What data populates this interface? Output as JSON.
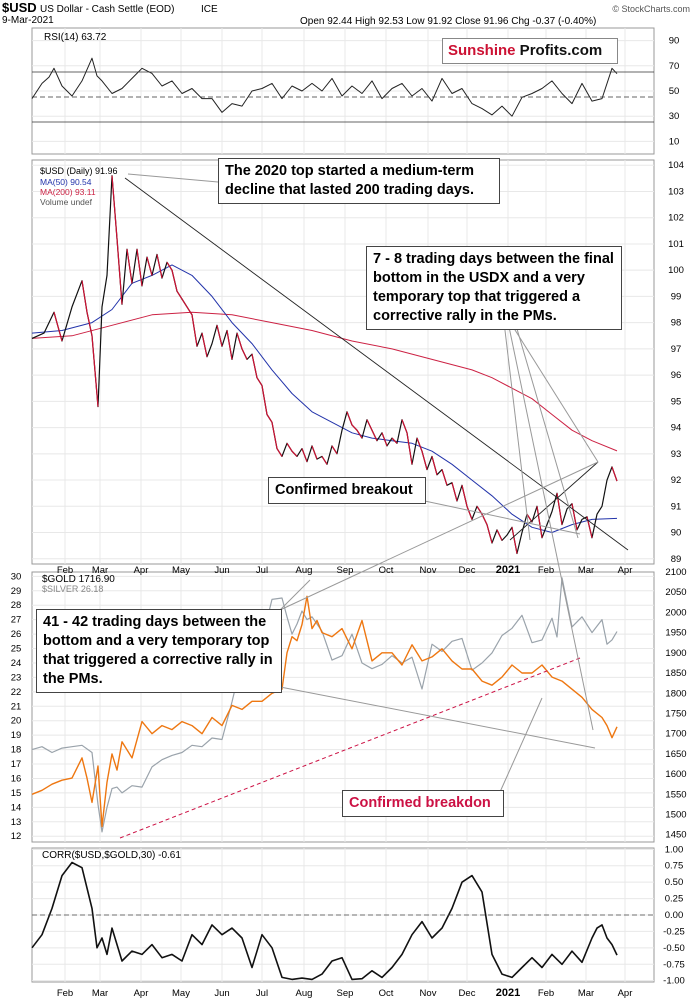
{
  "header": {
    "symbol": "$USD",
    "name": "US Dollar - Cash Settle (EOD)",
    "exchange": "ICE",
    "date": "9-Mar-2021",
    "watermark": "© StockCharts.com",
    "quote": "Open 92.44  High 92.53  Low 91.92  Close 91.96  Chg -0.37 (-0.40%)"
  },
  "logo": {
    "part1": "Sunshine",
    "part2": " Profits.com"
  },
  "colors": {
    "usd": "#000000",
    "ma50": "#2233aa",
    "ma200": "#cc2244",
    "gold": "#ee7711",
    "silver": "#9aa3ab",
    "breakdown": "#cc1144",
    "grid": "#e8e8e8"
  },
  "x_axis": {
    "months": [
      "Feb",
      "Mar",
      "Apr",
      "May",
      "Jun",
      "Jul",
      "Aug",
      "Sep",
      "Oct",
      "Nov",
      "Dec",
      "2021",
      "Feb",
      "Mar",
      "Apr"
    ]
  },
  "chart_data": [
    {
      "type": "line",
      "panel": "rsi",
      "legend": "RSI(14) 63.72",
      "y_ticks": [
        10,
        30,
        50,
        70,
        90
      ],
      "ylim": [
        0,
        100
      ],
      "x": [
        0,
        10,
        17,
        22,
        30,
        40,
        50,
        60,
        65,
        70,
        80,
        90,
        100,
        110,
        120,
        130,
        140,
        150,
        160,
        170,
        180,
        190,
        200,
        210,
        220,
        230,
        240,
        250,
        260,
        270,
        280,
        290,
        300,
        310,
        320,
        330,
        340,
        350,
        360,
        370,
        380,
        390,
        400,
        410,
        420,
        430,
        440,
        450,
        460,
        470,
        480,
        490,
        500,
        510,
        520,
        530,
        540,
        550,
        560,
        570,
        580,
        585
      ],
      "values": [
        44,
        56,
        61,
        68,
        54,
        46,
        58,
        76,
        62,
        58,
        48,
        52,
        60,
        68,
        64,
        54,
        58,
        48,
        52,
        44,
        44,
        33,
        40,
        38,
        50,
        52,
        56,
        44,
        54,
        50,
        56,
        50,
        60,
        46,
        54,
        48,
        58,
        44,
        52,
        56,
        46,
        52,
        42,
        60,
        48,
        52,
        40,
        36,
        31,
        38,
        30,
        45,
        48,
        52,
        58,
        48,
        40,
        56,
        42,
        44,
        68,
        63.72
      ]
    },
    {
      "type": "line",
      "panel": "usd",
      "legend": [
        "$USD (Daily) 91.96",
        "MA(50) 90.54",
        "MA(200) 93.11",
        "Volume undef"
      ],
      "y_ticks": [
        89,
        90,
        91,
        92,
        93,
        94,
        95,
        96,
        97,
        98,
        99,
        100,
        101,
        102,
        103,
        104
      ],
      "ylim": [
        88.8,
        104.2
      ],
      "series": [
        {
          "name": "$USD",
          "x": [
            0,
            12,
            22,
            30,
            40,
            50,
            55,
            60,
            66,
            70,
            75,
            80,
            85,
            90,
            95,
            100,
            105,
            110,
            115,
            120,
            125,
            130,
            135,
            140,
            145,
            150,
            160,
            165,
            170,
            175,
            180,
            185,
            190,
            195,
            200,
            205,
            210,
            215,
            220,
            225,
            230,
            235,
            240,
            245,
            250,
            255,
            260,
            265,
            270,
            275,
            280,
            285,
            290,
            295,
            300,
            305,
            310,
            315,
            320,
            325,
            330,
            335,
            340,
            345,
            350,
            355,
            360,
            365,
            370,
            375,
            380,
            385,
            390,
            395,
            400,
            405,
            410,
            415,
            420,
            425,
            430,
            435,
            440,
            445,
            450,
            455,
            460,
            465,
            470,
            475,
            480,
            485,
            490,
            495,
            500,
            505,
            510,
            515,
            520,
            525,
            530,
            535,
            540,
            545,
            550,
            555,
            560,
            565,
            570,
            575,
            580,
            585
          ],
          "values": [
            97.4,
            97.6,
            98.4,
            97.3,
            98.6,
            99.6,
            98.4,
            97.5,
            94.8,
            98.6,
            99.8,
            103.6,
            101.2,
            98.7,
            100.8,
            99.5,
            100.8,
            99.4,
            100.5,
            99.8,
            100.6,
            99.7,
            100.3,
            100.0,
            99.2,
            98.9,
            98.3,
            97.1,
            97.6,
            96.7,
            97.2,
            97.9,
            97.1,
            97.7,
            96.6,
            97.6,
            97.0,
            96.6,
            96.8,
            95.9,
            95.6,
            94.5,
            94.2,
            93.2,
            92.9,
            93.4,
            93.1,
            92.9,
            93.2,
            92.7,
            93.3,
            92.8,
            92.9,
            92.6,
            93.3,
            93.0,
            93.9,
            94.6,
            94.1,
            93.9,
            93.6,
            94.3,
            93.9,
            93.5,
            93.8,
            93.3,
            93.6,
            93.4,
            94.3,
            93.8,
            92.6,
            93.6,
            93.1,
            92.4,
            92.9,
            92.2,
            92.4,
            91.8,
            91.9,
            91.2,
            91.8,
            91.0,
            90.5,
            91.0,
            90.7,
            90.3,
            89.6,
            90.1,
            89.7,
            89.9,
            90.2,
            89.2,
            90.0,
            90.7,
            90.4,
            91.0,
            89.8,
            90.3,
            90.8,
            91.5,
            90.3,
            90.9,
            91.1,
            90.1,
            90.5,
            90.6,
            89.8,
            90.7,
            91.0,
            92.0,
            92.5,
            91.96
          ]
        },
        {
          "name": "MA(50)",
          "x": [
            0,
            30,
            60,
            80,
            100,
            120,
            140,
            160,
            180,
            200,
            220,
            240,
            260,
            280,
            300,
            320,
            340,
            360,
            380,
            400,
            420,
            440,
            460,
            480,
            500,
            520,
            540,
            560,
            585
          ],
          "values": [
            97.6,
            97.7,
            98.0,
            98.5,
            99.5,
            99.8,
            100.2,
            99.8,
            99.0,
            98.0,
            97.2,
            96.2,
            95.3,
            94.6,
            94.2,
            93.8,
            93.6,
            93.5,
            93.4,
            93.1,
            92.6,
            92.0,
            91.4,
            90.7,
            90.2,
            90.0,
            90.3,
            90.5,
            90.54
          ]
        },
        {
          "name": "MA(200)",
          "x": [
            0,
            40,
            80,
            120,
            160,
            200,
            240,
            280,
            320,
            360,
            400,
            440,
            460,
            480,
            500,
            520,
            540,
            560,
            585
          ],
          "values": [
            97.4,
            97.5,
            97.9,
            98.3,
            98.4,
            98.3,
            98.0,
            97.7,
            97.3,
            97.0,
            96.6,
            96.2,
            95.9,
            95.5,
            95.1,
            94.5,
            93.9,
            93.5,
            93.11
          ]
        }
      ]
    },
    {
      "type": "line",
      "panel": "gold-silver",
      "legend": [
        "$GOLD 1716.90",
        "$SILVER 26.18"
      ],
      "y_ticks_left": [
        12,
        13,
        14,
        15,
        16,
        17,
        18,
        19,
        20,
        21,
        22,
        23,
        24,
        25,
        26,
        27,
        28,
        29,
        30
      ],
      "y_ticks_right": [
        1450,
        1500,
        1550,
        1600,
        1650,
        1700,
        1750,
        1800,
        1850,
        1900,
        1950,
        2000,
        2050,
        2100
      ],
      "ylim_left": [
        11.6,
        30.3
      ],
      "ylim_right": [
        1432,
        2100
      ],
      "series": [
        {
          "name": "$GOLD",
          "axis": "right",
          "x": [
            0,
            10,
            20,
            30,
            40,
            50,
            55,
            60,
            66,
            70,
            75,
            80,
            85,
            90,
            100,
            110,
            120,
            130,
            140,
            150,
            160,
            170,
            180,
            190,
            200,
            210,
            220,
            230,
            240,
            250,
            255,
            260,
            265,
            270,
            275,
            280,
            285,
            290,
            300,
            310,
            320,
            330,
            340,
            350,
            360,
            370,
            380,
            390,
            400,
            410,
            420,
            430,
            440,
            450,
            460,
            470,
            480,
            490,
            500,
            510,
            520,
            530,
            540,
            550,
            560,
            570,
            575,
            580,
            585
          ],
          "values": [
            1550,
            1560,
            1575,
            1585,
            1590,
            1640,
            1590,
            1530,
            1620,
            1470,
            1580,
            1650,
            1610,
            1680,
            1640,
            1730,
            1700,
            1720,
            1710,
            1730,
            1720,
            1700,
            1740,
            1720,
            1770,
            1760,
            1780,
            1780,
            1800,
            1810,
            1900,
            1940,
            1930,
            1970,
            2040,
            1960,
            1980,
            1950,
            1940,
            1960,
            1910,
            1980,
            1880,
            1900,
            1900,
            1870,
            1920,
            1880,
            1890,
            1910,
            1880,
            1860,
            1860,
            1830,
            1820,
            1840,
            1870,
            1850,
            1850,
            1870,
            1840,
            1830,
            1810,
            1790,
            1760,
            1740,
            1720,
            1690,
            1716.9
          ]
        },
        {
          "name": "$SILVER",
          "axis": "left",
          "x": [
            0,
            10,
            20,
            30,
            40,
            50,
            60,
            66,
            70,
            75,
            80,
            85,
            90,
            100,
            110,
            120,
            130,
            140,
            150,
            160,
            170,
            180,
            190,
            200,
            210,
            220,
            230,
            240,
            250,
            255,
            260,
            265,
            270,
            275,
            280,
            285,
            290,
            300,
            310,
            320,
            330,
            340,
            350,
            360,
            370,
            380,
            390,
            400,
            410,
            420,
            430,
            440,
            450,
            460,
            470,
            480,
            490,
            500,
            510,
            520,
            525,
            530,
            540,
            550,
            560,
            570,
            575,
            580,
            585
          ],
          "values": [
            18,
            18.2,
            17.8,
            18.1,
            18.2,
            18.3,
            17.8,
            14.2,
            12.3,
            14,
            15.3,
            15.4,
            15,
            15.5,
            15.4,
            16.8,
            17.3,
            17.6,
            17.8,
            18.3,
            18.2,
            18.8,
            18.7,
            21.3,
            24.2,
            24.6,
            25.6,
            28.4,
            28.5,
            27.2,
            26.0,
            26.7,
            27.6,
            27.0,
            27.2,
            26.7,
            26.2,
            24.2,
            24.5,
            26,
            24,
            23.6,
            23.9,
            24.5,
            24,
            24.4,
            22.2,
            25.3,
            24.8,
            25.5,
            25.7,
            23.5,
            24.0,
            24.7,
            25.9,
            26.4,
            27.3,
            25.4,
            25.6,
            27.1,
            25.8,
            29.9,
            26.5,
            27.2,
            26.1,
            27.0,
            25.3,
            25.6,
            26.18
          ]
        }
      ]
    },
    {
      "type": "line",
      "panel": "correlation",
      "legend": "CORR($USD,$GOLD,30) -0.61",
      "y_ticks": [
        1.0,
        0.75,
        0.5,
        0.25,
        0.0,
        -0.25,
        -0.5,
        -0.75,
        -1.0
      ],
      "tick_labels": [
        "1.00",
        "0.75",
        "0.50",
        "0.25",
        "0.00",
        "-0.25",
        "-0.50",
        "-0.75",
        "-1.00"
      ],
      "ylim": [
        -1.02,
        1.02
      ],
      "x": [
        0,
        10,
        20,
        30,
        40,
        50,
        60,
        65,
        70,
        75,
        80,
        90,
        100,
        110,
        120,
        130,
        140,
        150,
        160,
        170,
        180,
        190,
        200,
        210,
        220,
        230,
        240,
        250,
        260,
        270,
        280,
        290,
        300,
        310,
        320,
        330,
        340,
        350,
        360,
        370,
        380,
        390,
        400,
        410,
        420,
        430,
        440,
        450,
        460,
        470,
        480,
        490,
        500,
        510,
        520,
        530,
        540,
        550,
        560,
        565,
        570,
        575,
        580,
        585
      ],
      "values": [
        -0.5,
        -0.3,
        0.1,
        0.6,
        0.8,
        0.72,
        0.1,
        -0.5,
        -0.35,
        -0.6,
        -0.2,
        -0.7,
        -0.55,
        -0.6,
        -0.45,
        -0.65,
        -0.6,
        -0.7,
        -0.3,
        -0.45,
        -0.15,
        -0.3,
        -0.2,
        -0.35,
        -0.8,
        -0.3,
        -0.5,
        -0.95,
        -0.98,
        -0.96,
        -0.98,
        -0.9,
        -0.7,
        -0.65,
        -0.98,
        -0.97,
        -0.85,
        -0.95,
        -0.8,
        -0.6,
        -0.3,
        -0.1,
        -0.35,
        -0.2,
        0.1,
        0.5,
        0.6,
        0.35,
        -0.6,
        -0.9,
        -0.95,
        -0.8,
        -0.65,
        -0.8,
        -0.6,
        -0.75,
        -0.55,
        -0.72,
        -0.35,
        -0.2,
        -0.15,
        -0.35,
        -0.45,
        -0.61
      ]
    }
  ],
  "annotations": {
    "top2020": "The 2020 top started a medium-term decline that lasted 200 trading days.",
    "usdx": "7 - 8 trading days between the final bottom in the USDX and a very temporary top that triggered a corrective rally in the PMs.",
    "breakout": "Confirmed breakout",
    "pms": "41 - 42 trading days between the bottom and a very temporary top that triggered a corrective rally in the PMs.",
    "breakdown": "Confirmed breakdon"
  }
}
